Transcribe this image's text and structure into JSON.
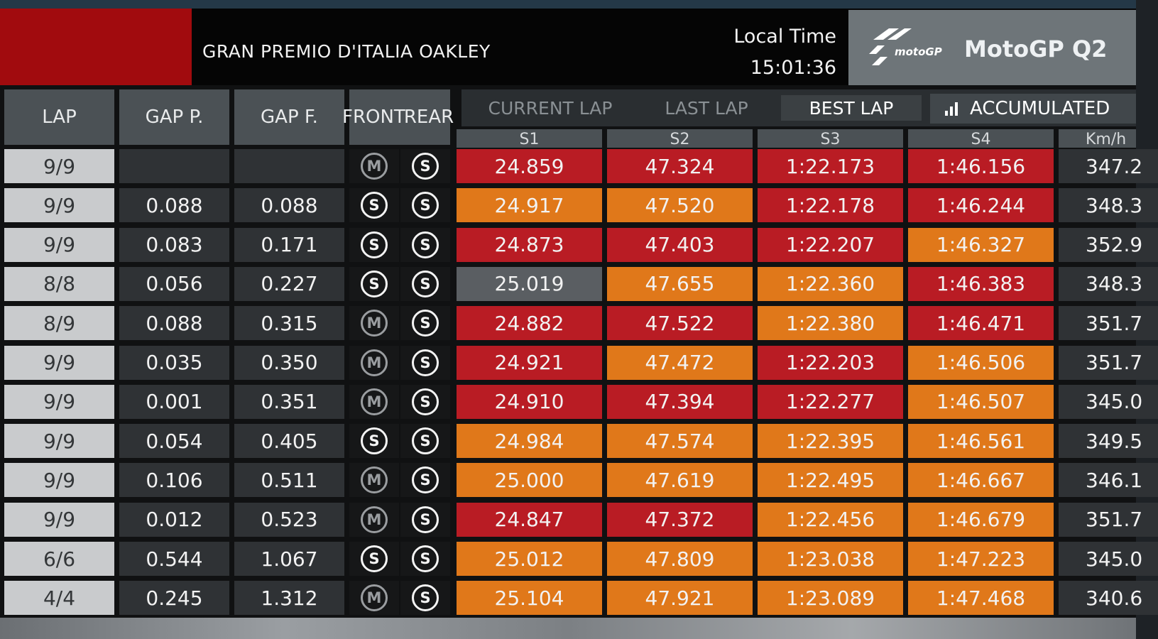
{
  "header": {
    "event_title": "GRAN PREMIO D'ITALIA OAKLEY",
    "local_time_label": "Local Time",
    "local_time": "15:01:36",
    "session": "MotoGP Q2",
    "logo_text": "motoGP"
  },
  "columns": {
    "lap": "LAP",
    "gap_p": "GAP P.",
    "gap_f": "GAP F.",
    "front": "FRONT",
    "rear": "REAR",
    "s1": "S1",
    "s2": "S2",
    "s3": "S3",
    "s4": "S4",
    "speed": "Km/h"
  },
  "tabs": {
    "current_lap": "CURRENT LAP",
    "last_lap": "LAST LAP",
    "best_lap": "BEST LAP",
    "accumulated": "ACCUMULATED"
  },
  "colors": {
    "personal_best": "#b91c24",
    "slower": "#e0781a",
    "neutral": "#5a5e62",
    "header_red": "#a10b0e"
  },
  "rows": [
    {
      "lap": "9/9",
      "gap_p": "",
      "gap_f": "",
      "front": "M",
      "rear": "S",
      "s1": "24.859",
      "s1_state": "red",
      "s2": "47.324",
      "s2_state": "red",
      "s3": "1:22.173",
      "s3_state": "red",
      "s4": "1:46.156",
      "s4_state": "red",
      "speed": "347.2"
    },
    {
      "lap": "9/9",
      "gap_p": "0.088",
      "gap_f": "0.088",
      "front": "S",
      "rear": "S",
      "s1": "24.917",
      "s1_state": "orange",
      "s2": "47.520",
      "s2_state": "orange",
      "s3": "1:22.178",
      "s3_state": "red",
      "s4": "1:46.244",
      "s4_state": "red",
      "speed": "348.3"
    },
    {
      "lap": "9/9",
      "gap_p": "0.083",
      "gap_f": "0.171",
      "front": "S",
      "rear": "S",
      "s1": "24.873",
      "s1_state": "red",
      "s2": "47.403",
      "s2_state": "red",
      "s3": "1:22.207",
      "s3_state": "red",
      "s4": "1:46.327",
      "s4_state": "orange",
      "speed": "352.9"
    },
    {
      "lap": "8/8",
      "gap_p": "0.056",
      "gap_f": "0.227",
      "front": "S",
      "rear": "S",
      "s1": "25.019",
      "s1_state": "grey",
      "s2": "47.655",
      "s2_state": "orange",
      "s3": "1:22.360",
      "s3_state": "orange",
      "s4": "1:46.383",
      "s4_state": "red",
      "speed": "348.3"
    },
    {
      "lap": "8/9",
      "gap_p": "0.088",
      "gap_f": "0.315",
      "front": "M",
      "rear": "S",
      "s1": "24.882",
      "s1_state": "red",
      "s2": "47.522",
      "s2_state": "red",
      "s3": "1:22.380",
      "s3_state": "orange",
      "s4": "1:46.471",
      "s4_state": "red",
      "speed": "351.7"
    },
    {
      "lap": "9/9",
      "gap_p": "0.035",
      "gap_f": "0.350",
      "front": "M",
      "rear": "S",
      "s1": "24.921",
      "s1_state": "red",
      "s2": "47.472",
      "s2_state": "orange",
      "s3": "1:22.203",
      "s3_state": "red",
      "s4": "1:46.506",
      "s4_state": "orange",
      "speed": "351.7"
    },
    {
      "lap": "9/9",
      "gap_p": "0.001",
      "gap_f": "0.351",
      "front": "M",
      "rear": "S",
      "s1": "24.910",
      "s1_state": "red",
      "s2": "47.394",
      "s2_state": "red",
      "s3": "1:22.277",
      "s3_state": "red",
      "s4": "1:46.507",
      "s4_state": "orange",
      "speed": "345.0"
    },
    {
      "lap": "9/9",
      "gap_p": "0.054",
      "gap_f": "0.405",
      "front": "S",
      "rear": "S",
      "s1": "24.984",
      "s1_state": "orange",
      "s2": "47.574",
      "s2_state": "orange",
      "s3": "1:22.395",
      "s3_state": "orange",
      "s4": "1:46.561",
      "s4_state": "orange",
      "speed": "349.5"
    },
    {
      "lap": "9/9",
      "gap_p": "0.106",
      "gap_f": "0.511",
      "front": "M",
      "rear": "S",
      "s1": "25.000",
      "s1_state": "orange",
      "s2": "47.619",
      "s2_state": "orange",
      "s3": "1:22.495",
      "s3_state": "orange",
      "s4": "1:46.667",
      "s4_state": "orange",
      "speed": "346.1"
    },
    {
      "lap": "9/9",
      "gap_p": "0.012",
      "gap_f": "0.523",
      "front": "M",
      "rear": "S",
      "s1": "24.847",
      "s1_state": "red",
      "s2": "47.372",
      "s2_state": "red",
      "s3": "1:22.456",
      "s3_state": "orange",
      "s4": "1:46.679",
      "s4_state": "orange",
      "speed": "351.7"
    },
    {
      "lap": "6/6",
      "gap_p": "0.544",
      "gap_f": "1.067",
      "front": "S",
      "rear": "S",
      "s1": "25.012",
      "s1_state": "orange",
      "s2": "47.809",
      "s2_state": "orange",
      "s3": "1:23.038",
      "s3_state": "orange",
      "s4": "1:47.223",
      "s4_state": "orange",
      "speed": "345.0"
    },
    {
      "lap": "4/4",
      "gap_p": "0.245",
      "gap_f": "1.312",
      "front": "M",
      "rear": "S",
      "s1": "25.104",
      "s1_state": "orange",
      "s2": "47.921",
      "s2_state": "orange",
      "s3": "1:23.089",
      "s3_state": "orange",
      "s4": "1:47.468",
      "s4_state": "orange",
      "speed": "340.6"
    }
  ]
}
